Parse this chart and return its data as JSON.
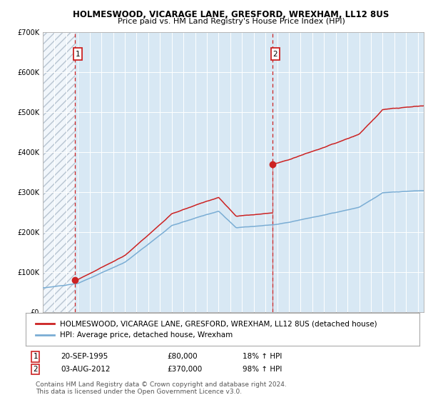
{
  "title": "HOLMESWOOD, VICARAGE LANE, GRESFORD, WREXHAM, LL12 8US",
  "subtitle": "Price paid vs. HM Land Registry's House Price Index (HPI)",
  "ylim": [
    0,
    700000
  ],
  "yticks": [
    0,
    100000,
    200000,
    300000,
    400000,
    500000,
    600000,
    700000
  ],
  "ytick_labels": [
    "£0",
    "£100K",
    "£200K",
    "£300K",
    "£400K",
    "£500K",
    "£600K",
    "£700K"
  ],
  "hpi_color": "#7aadd4",
  "price_color": "#cc2222",
  "marker_color": "#cc2222",
  "background_color": "#d8e8f4",
  "grid_color": "#ffffff",
  "legend_label_red": "HOLMESWOOD, VICARAGE LANE, GRESFORD, WREXHAM, LL12 8US (detached house)",
  "legend_label_blue": "HPI: Average price, detached house, Wrexham",
  "sale1_date": 1995.73,
  "sale1_price": 80000,
  "sale2_date": 2012.59,
  "sale2_price": 370000,
  "sale1_text": "20-SEP-1995",
  "sale1_amount": "£80,000",
  "sale1_hpi": "18% ↑ HPI",
  "sale2_text": "03-AUG-2012",
  "sale2_amount": "£370,000",
  "sale2_hpi": "98% ↑ HPI",
  "copyright_text": "Contains HM Land Registry data © Crown copyright and database right 2024.\nThis data is licensed under the Open Government Licence v3.0.",
  "title_fontsize": 8.5,
  "subtitle_fontsize": 8,
  "tick_fontsize": 7,
  "legend_fontsize": 7.5,
  "note_fontsize": 6.5,
  "xmin": 1993.0,
  "xmax": 2025.5
}
